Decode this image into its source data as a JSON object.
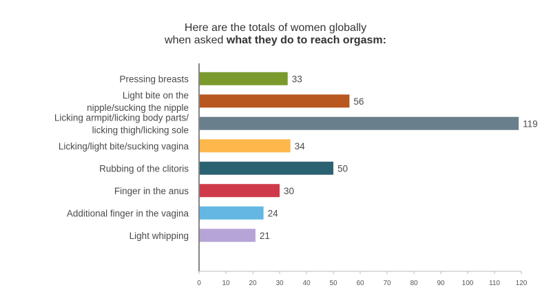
{
  "chart_data": {
    "type": "bar",
    "orientation": "horizontal",
    "title_line1": "Here are the totals of women globally",
    "title_line2_prefix": "when asked ",
    "title_line2_bold": "what they do to reach orgasm:",
    "categories": [
      [
        "Pressing breasts"
      ],
      [
        "Light bite on the",
        "nipple/sucking the nipple"
      ],
      [
        "Licking armpit/licking body parts/",
        "licking thigh/licking sole"
      ],
      [
        "Licking/light bite/sucking vagina"
      ],
      [
        "Rubbing of the clitoris"
      ],
      [
        "Finger in the anus"
      ],
      [
        "Additional finger in the vagina"
      ],
      [
        "Light whipping"
      ]
    ],
    "values": [
      33,
      56,
      119,
      34,
      50,
      30,
      24,
      21
    ],
    "colors": [
      "#7b9a2e",
      "#b85720",
      "#6a7f8c",
      "#fdb74b",
      "#2b6272",
      "#cf3a4a",
      "#64b7e3",
      "#b6a4d6"
    ],
    "xlim": [
      0,
      120
    ],
    "xticks": [
      0,
      10,
      20,
      30,
      40,
      50,
      60,
      70,
      80,
      90,
      100,
      110,
      120
    ],
    "xlabel": "",
    "ylabel": "",
    "grid": false,
    "legend": "none"
  }
}
